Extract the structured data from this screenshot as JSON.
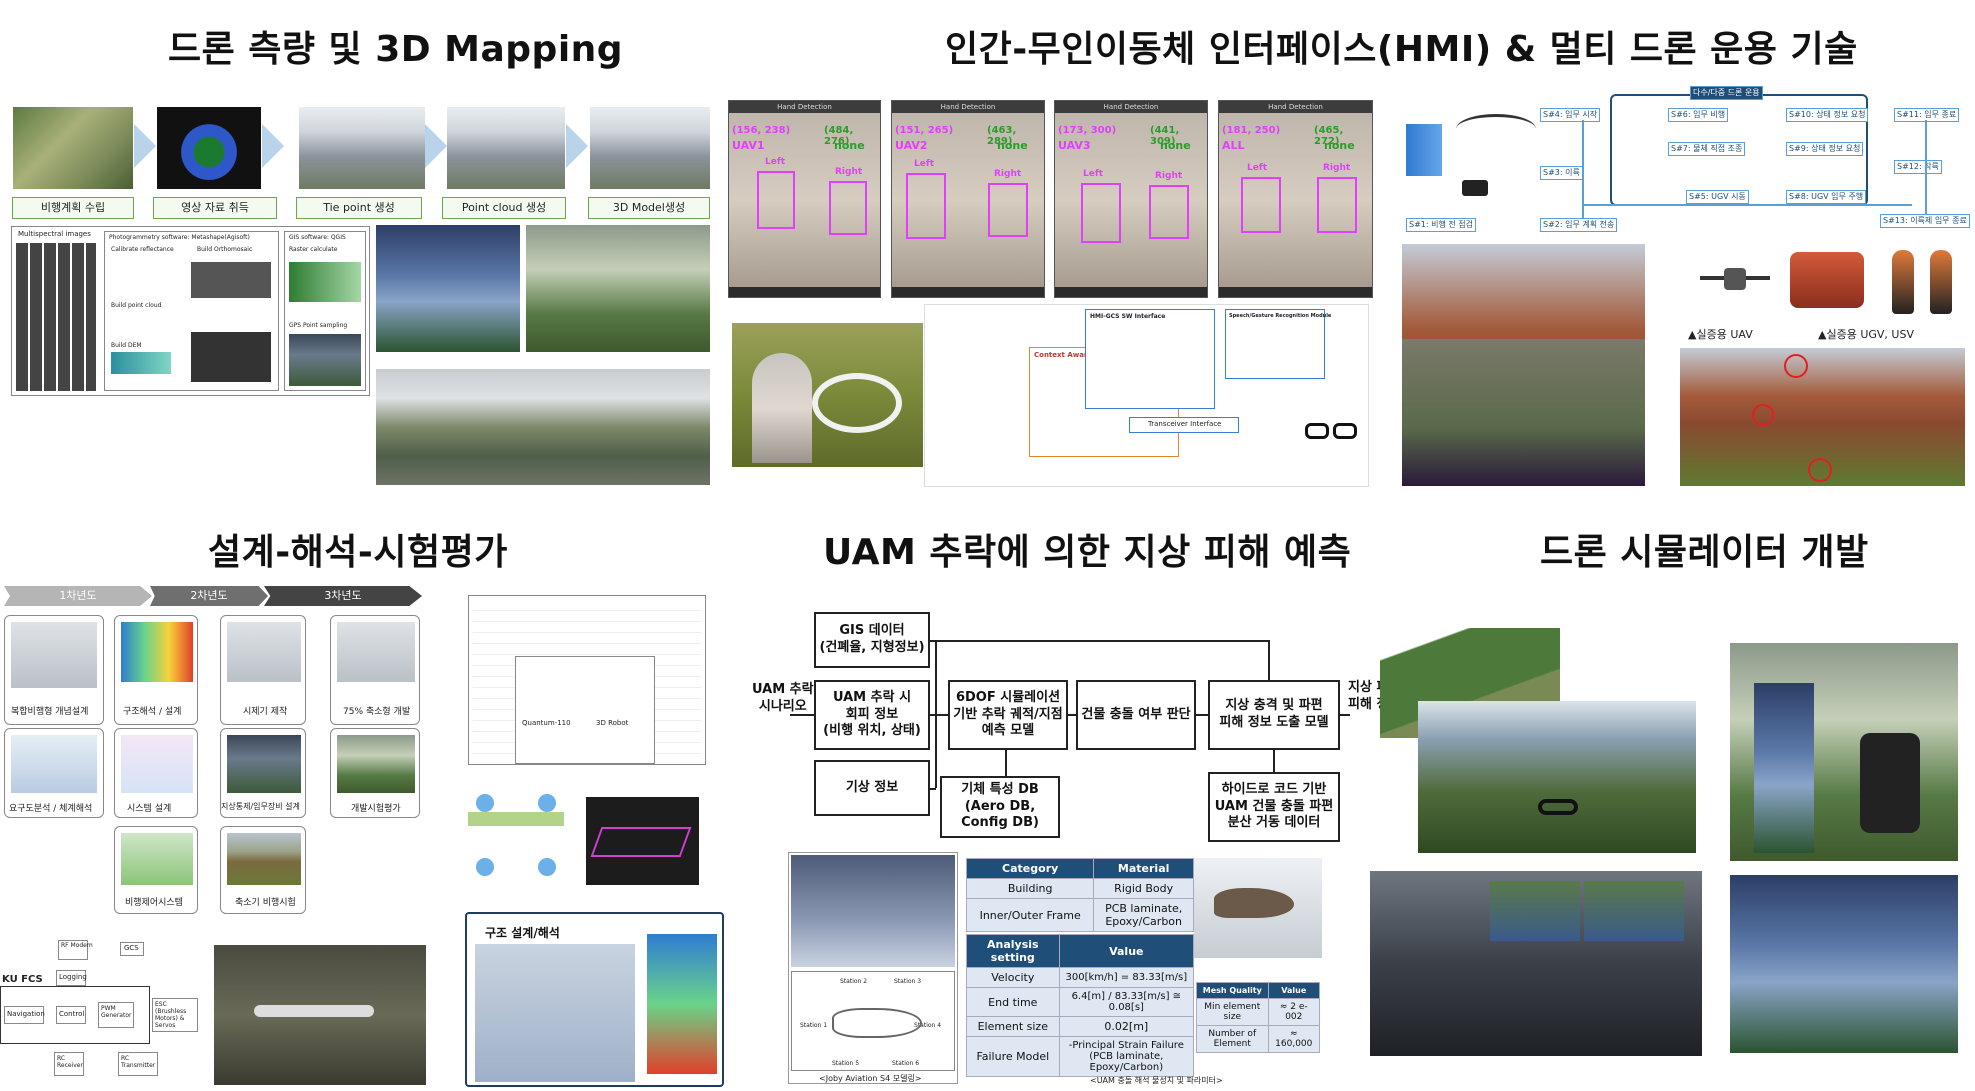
{
  "titles": {
    "mapping": "드론 측량 및 3D Mapping",
    "hmi": "인간-무인이동체 인터페이스(HMI) & 멀티 드론 운용 기술",
    "design": "설계-해석-시험평가",
    "uam": "UAM 추락에 의한 지상 피해 예측",
    "sim": "드론 시뮬레이터 개발"
  },
  "mapping": {
    "steps": [
      "비행계획 수립",
      "영상 자료 취득",
      "Tie point 생성",
      "Point cloud 생성",
      "3D Model생성"
    ],
    "panels": {
      "multispectral": "Multispectral images",
      "photogrammetry": "Photogrammetry software: Metashape(Agisoft)",
      "gis": "GIS software: QGIS",
      "calibrate": "Calibrate reflectance",
      "orthomosaic": "Build Orthomosaic",
      "raster": "Raster calculate",
      "pointcloud": "Build point cloud",
      "dem": "Build DEM",
      "gps": "GPS Point sampling"
    }
  },
  "hmi": {
    "frames": [
      {
        "title": "Hand Detection",
        "left_coord": "(156, 238)",
        "right_coord": "(484, 276)",
        "uav": "UAV1",
        "target": "none"
      },
      {
        "title": "Hand Detection",
        "left_coord": "(151, 265)",
        "right_coord": "(463, 289)",
        "uav": "UAV2",
        "target": "none"
      },
      {
        "title": "Hand Detection",
        "left_coord": "(173, 300)",
        "right_coord": "(441, 309)",
        "uav": "UAV3",
        "target": "none"
      },
      {
        "title": "Hand Detection",
        "left_coord": "(181, 250)",
        "right_coord": "(465, 272)",
        "uav": "ALL",
        "target": "none"
      }
    ],
    "hand_left": "Left",
    "hand_right": "Right",
    "gcs_title": "HMI-GCS SW Interface",
    "context_title": "Context Awareness Interface",
    "speech_title": "Speech/Gesture Recognition Module",
    "transceiver": "Transceiver Interface",
    "mission": {
      "header": "다수/다중 드론 운용",
      "items": [
        "S#4: 임무 시작",
        "S#6: 임무 비행",
        "S#10: 상태 정보 요청",
        "S#11: 임무 종료",
        "S#7: 물체 직접 조종",
        "S#9: 상태 정보 요청",
        "S#3: 이륙",
        "S#12: 착륙",
        "S#5: UGV 시동",
        "S#8: UGV 임무 주행",
        "S#1: 비행 전 점검",
        "S#2: 임무 계획 전송",
        "S#13: 이륙제 임무 종료"
      ]
    },
    "uav_caption": "▲실증용 UAV",
    "ugv_caption": "▲실증용 UGV, USV"
  },
  "design": {
    "timeline": [
      "1차년도",
      "2차년도",
      "3차년도"
    ],
    "blocks": [
      "복합비행형 개념설계",
      "구조해석 / 설계",
      "시제기 제작",
      "75% 축소형 개발",
      "요구도분석 / 체계해석",
      "시스템 설계",
      "지상통제/임무장비 설계",
      "개발시험평가",
      "비행제어시스템",
      "축소기 비행시험"
    ],
    "fcs": {
      "ku": "KU FCS",
      "rf": "RF Modem",
      "gcs": "GCS",
      "logging": "Logging",
      "navigation": "Navigation",
      "control": "Control",
      "pwm": "PWM Generator",
      "esc": "ESC (Brushless Motors) & Servos",
      "rc_rx": "RC Receiver",
      "rc_tx": "RC Transmitter"
    },
    "struct_title": "구조 설계/해석",
    "spec_left": "Quantum-110",
    "spec_right": "3D Robot"
  },
  "uam": {
    "scenario": "UAM 추락\n시나리오",
    "gis": "GIS 데이터\n(건폐율, 지형정보)",
    "avoid": "UAM 추락 시\n회피 정보\n(비행 위치, 상태)",
    "weather": "기상 정보",
    "sixdof": "6DOF 시뮬레이션\n기반 추락 궤적/지점\n예측 모델",
    "airframe": "기체 특성 DB\n(Aero DB, Config DB)",
    "collision": "건물 충돌 여부 판단",
    "impact": "지상 충격 및 파편\n피해 정보 도출 모델",
    "hydro": "하이드로 코드 기반\nUAM 건물 충돌 파편\n분산 거동 데이터",
    "output": "지상 파편\n피해 정보",
    "joby_caption": "<Joby Aviation S4 모델링>",
    "analysis_caption": "<UAM 충돌 해석 물성치 및 파라미터>",
    "stations": [
      "Station 1",
      "Station 2",
      "Station 3",
      "Station 4",
      "Station 5",
      "Station 6"
    ],
    "table1": {
      "headers": [
        "Category",
        "Material"
      ],
      "rows": [
        [
          "Building",
          "Rigid Body"
        ],
        [
          "Inner/Outer Frame",
          "PCB laminate,\nEpoxy/Carbon"
        ]
      ]
    },
    "table2": {
      "headers": [
        "Analysis setting",
        "Value"
      ],
      "rows": [
        [
          "Velocity",
          "300[km/h] = 83.33[m/s]"
        ],
        [
          "End time",
          "6.4[m] / 83.33[m/s] ≅ 0.08[s]"
        ],
        [
          "Element size",
          "0.02[m]"
        ],
        [
          "Failure Model",
          "-Principal Strain  Failure\n(PCB laminate, Epoxy/Carbon)"
        ]
      ]
    },
    "table3": {
      "headers": [
        "Mesh Quality",
        "Value"
      ],
      "rows": [
        [
          "Min element size",
          "≈ 2 e-002"
        ],
        [
          "Number of Element",
          "≈ 160,000"
        ]
      ]
    }
  }
}
